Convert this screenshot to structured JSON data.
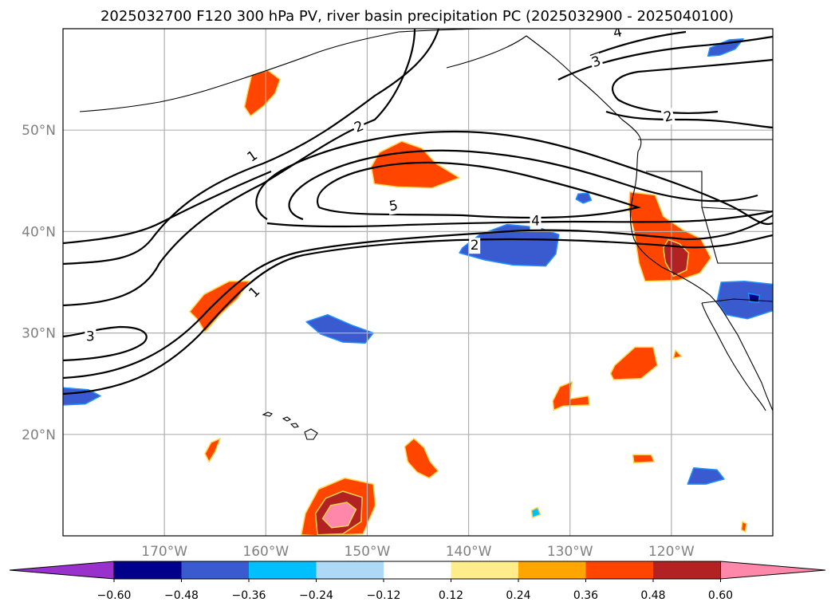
{
  "title": "2025032700 F120 300 hPa PV, river basin precipitation PC (2025032900 - 2025040100)",
  "map": {
    "lon_range": [
      -180,
      -110
    ],
    "lat_range": [
      10,
      60
    ],
    "longitude_ticks": [
      {
        "lon": -170,
        "label": "170°W"
      },
      {
        "lon": -160,
        "label": "160°W"
      },
      {
        "lon": -150,
        "label": "150°W"
      },
      {
        "lon": -140,
        "label": "140°W"
      },
      {
        "lon": -130,
        "label": "130°W"
      },
      {
        "lon": -120,
        "label": "120°W"
      }
    ],
    "latitude_ticks": [
      {
        "lat": 50,
        "label": "50°N"
      },
      {
        "lat": 40,
        "label": "40°N"
      },
      {
        "lat": 30,
        "label": "30°N"
      },
      {
        "lat": 20,
        "label": "20°N"
      }
    ],
    "grid": true,
    "pv_contour_labels": [
      {
        "text": "1",
        "lon": -161.3,
        "lat": 47.4,
        "rot": -35
      },
      {
        "text": "1",
        "lon": -161.1,
        "lat": 34.0,
        "rot": -45
      },
      {
        "text": "2",
        "lon": -150.8,
        "lat": 50.3,
        "rot": -22
      },
      {
        "text": "5",
        "lon": -147.4,
        "lat": 42.5,
        "rot": -10
      },
      {
        "text": "4",
        "lon": -133.4,
        "lat": 41.0,
        "rot": 0
      },
      {
        "text": "2",
        "lon": -139.4,
        "lat": 38.6,
        "rot": 0
      },
      {
        "text": "3",
        "lon": -177.3,
        "lat": 29.6,
        "rot": 0
      },
      {
        "text": "3",
        "lon": -127.4,
        "lat": 56.7,
        "rot": -20
      },
      {
        "text": "4",
        "lon": -125.3,
        "lat": 59.6,
        "rot": -12
      },
      {
        "text": "2",
        "lon": -120.3,
        "lat": 51.3,
        "rot": -15
      }
    ],
    "precipitation_anomalies": [
      {
        "id": "bering-positive",
        "color": "#ff4500",
        "points": [
          [
            -161.4,
            55.4
          ],
          [
            -159.8,
            55.9
          ],
          [
            -158.6,
            55.0
          ],
          [
            -159.1,
            53.6
          ],
          [
            -160.2,
            52.4
          ],
          [
            -161.5,
            51.4
          ],
          [
            -162.1,
            52.3
          ],
          [
            -161.8,
            53.7
          ]
        ]
      },
      {
        "id": "gulf-alaska-positive",
        "color": "#ff4500",
        "points": [
          [
            -148.8,
            47.8
          ],
          [
            -146.6,
            48.9
          ],
          [
            -144.6,
            48.2
          ],
          [
            -143.2,
            46.7
          ],
          [
            -140.9,
            45.3
          ],
          [
            -143.6,
            44.3
          ],
          [
            -147.0,
            44.4
          ],
          [
            -149.3,
            44.7
          ],
          [
            -149.6,
            46.4
          ]
        ]
      },
      {
        "id": "subtropical-west-positive",
        "color": "#ff4500",
        "points": [
          [
            -166.1,
            33.8
          ],
          [
            -163.6,
            35.1
          ],
          [
            -161.6,
            35.1
          ],
          [
            -162.8,
            33.4
          ],
          [
            -164.5,
            31.8
          ],
          [
            -166.0,
            30.1
          ],
          [
            -166.7,
            31.3
          ],
          [
            -167.5,
            32.1
          ]
        ]
      },
      {
        "id": "central-negative",
        "color": "#3a5bcf",
        "points": [
          [
            -140.6,
            38.4
          ],
          [
            -138.9,
            39.7
          ],
          [
            -136.2,
            40.7
          ],
          [
            -133.1,
            40.4
          ],
          [
            -131.1,
            39.7
          ],
          [
            -131.4,
            37.8
          ],
          [
            -132.4,
            36.6
          ],
          [
            -135.6,
            36.7
          ],
          [
            -138.4,
            37.2
          ],
          [
            -140.9,
            37.9
          ]
        ]
      },
      {
        "id": "subtropical-central-negative",
        "color": "#3a5bcf",
        "points": [
          [
            -156.0,
            31.1
          ],
          [
            -153.9,
            31.8
          ],
          [
            -151.6,
            30.8
          ],
          [
            -149.4,
            30.0
          ],
          [
            -150.2,
            29.0
          ],
          [
            -152.4,
            29.1
          ],
          [
            -154.6,
            29.9
          ]
        ]
      },
      {
        "id": "california-positive",
        "color": "#ff4500",
        "points": [
          [
            -124.1,
            43.9
          ],
          [
            -121.6,
            43.6
          ],
          [
            -120.8,
            41.5
          ],
          [
            -118.9,
            40.2
          ],
          [
            -117.1,
            39.3
          ],
          [
            -116.1,
            37.4
          ],
          [
            -117.2,
            35.9
          ],
          [
            -119.3,
            35.2
          ],
          [
            -122.6,
            35.1
          ],
          [
            -123.2,
            36.9
          ],
          [
            -123.7,
            40.1
          ],
          [
            -124.2,
            42.1
          ]
        ]
      },
      {
        "id": "california-core-positive",
        "color": "#b22222",
        "points": [
          [
            -120.3,
            39.2
          ],
          [
            -119.2,
            38.8
          ],
          [
            -118.3,
            37.9
          ],
          [
            -118.5,
            36.2
          ],
          [
            -119.8,
            35.6
          ],
          [
            -120.6,
            37.0
          ],
          [
            -120.8,
            38.4
          ]
        ]
      },
      {
        "id": "baja-negative",
        "color": "#3a5bcf",
        "points": [
          [
            -115.1,
            35.0
          ],
          [
            -112.8,
            35.1
          ],
          [
            -110.0,
            34.8
          ],
          [
            -110.0,
            32.2
          ],
          [
            -112.5,
            31.4
          ],
          [
            -114.6,
            31.8
          ],
          [
            -115.5,
            33.1
          ]
        ]
      },
      {
        "id": "baja-core-negative",
        "color": "#00008b",
        "points": [
          [
            -112.4,
            33.9
          ],
          [
            -111.3,
            33.7
          ],
          [
            -111.4,
            33.0
          ],
          [
            -112.3,
            33.1
          ]
        ]
      },
      {
        "id": "pacific-nw-negative",
        "color": "#3a5bcf",
        "points": [
          [
            -129.2,
            43.7
          ],
          [
            -128.2,
            43.8
          ],
          [
            -127.9,
            43.1
          ],
          [
            -128.7,
            42.8
          ],
          [
            -129.4,
            43.2
          ]
        ]
      },
      {
        "id": "alaska-panhandle-negative",
        "color": "#3a5bcf",
        "points": [
          [
            -116.2,
            58.1
          ],
          [
            -114.3,
            58.9
          ],
          [
            -112.9,
            59.0
          ],
          [
            -113.7,
            58.0
          ],
          [
            -115.2,
            57.4
          ],
          [
            -116.4,
            57.3
          ]
        ]
      },
      {
        "id": "east-subtropic-positive",
        "color": "#ff4500",
        "points": [
          [
            -125.6,
            26.8
          ],
          [
            -123.6,
            28.6
          ],
          [
            -121.8,
            28.6
          ],
          [
            -121.4,
            26.8
          ],
          [
            -123.0,
            25.5
          ],
          [
            -125.7,
            25.4
          ],
          [
            -126.0,
            26.0
          ]
        ]
      },
      {
        "id": "hawaii-ne-positive",
        "color": "#ff4500",
        "points": [
          [
            -131.0,
            24.7
          ],
          [
            -129.8,
            25.2
          ],
          [
            -130.0,
            23.5
          ],
          [
            -128.2,
            23.8
          ],
          [
            -128.1,
            22.9
          ],
          [
            -130.7,
            22.8
          ],
          [
            -131.6,
            22.4
          ],
          [
            -131.7,
            23.3
          ]
        ]
      },
      {
        "id": "baja-south-positive",
        "color": "#ff4500",
        "points": [
          [
            -122.0,
            18.0
          ],
          [
            -121.7,
            17.3
          ],
          [
            -123.7,
            17.2
          ],
          [
            -123.8,
            18.0
          ]
        ]
      },
      {
        "id": "mexico-negative",
        "color": "#3a5bcf",
        "points": [
          [
            -117.8,
            16.7
          ],
          [
            -115.5,
            16.5
          ],
          [
            -114.8,
            15.6
          ],
          [
            -116.6,
            15.1
          ],
          [
            -118.4,
            15.1
          ]
        ]
      },
      {
        "id": "hawaii-south-positive",
        "color": "#ff4500",
        "points": [
          [
            -145.4,
            19.6
          ],
          [
            -144.4,
            18.7
          ],
          [
            -143.8,
            17.3
          ],
          [
            -143.0,
            16.4
          ],
          [
            -143.9,
            15.7
          ],
          [
            -145.1,
            16.3
          ],
          [
            -146.0,
            17.3
          ],
          [
            -146.3,
            18.8
          ]
        ]
      },
      {
        "id": "west-small-positive",
        "color": "#ff4500",
        "points": [
          [
            -165.4,
            19.2
          ],
          [
            -164.5,
            19.6
          ],
          [
            -165.0,
            18.3
          ],
          [
            -165.6,
            17.3
          ],
          [
            -166.0,
            18.1
          ]
        ]
      },
      {
        "id": "south-central-positive",
        "color": "#ff4500",
        "points": [
          [
            -154.8,
            14.6
          ],
          [
            -152.2,
            15.7
          ],
          [
            -149.4,
            15.1
          ],
          [
            -149.2,
            13.0
          ],
          [
            -150.4,
            10.2
          ],
          [
            -154.8,
            10.0
          ],
          [
            -156.5,
            10.1
          ],
          [
            -156.1,
            12.2
          ]
        ]
      },
      {
        "id": "south-central-core",
        "color": "#b22222",
        "points": [
          [
            -154.1,
            13.7
          ],
          [
            -152.4,
            14.4
          ],
          [
            -150.5,
            13.8
          ],
          [
            -150.6,
            11.4
          ],
          [
            -152.4,
            10.2
          ],
          [
            -154.9,
            10.1
          ],
          [
            -155.1,
            12.2
          ]
        ]
      },
      {
        "id": "south-central-peak",
        "color": "#ff88aa",
        "points": [
          [
            -153.6,
            13.0
          ],
          [
            -152.0,
            13.3
          ],
          [
            -151.1,
            12.6
          ],
          [
            -151.9,
            11.0
          ],
          [
            -153.5,
            10.8
          ],
          [
            -154.4,
            11.7
          ]
        ]
      },
      {
        "id": "dateline-negative",
        "color": "#3a5bcf",
        "points": [
          [
            -180.0,
            24.6
          ],
          [
            -177.5,
            24.4
          ],
          [
            -176.3,
            23.8
          ],
          [
            -177.8,
            23.0
          ],
          [
            -180.0,
            22.9
          ]
        ]
      },
      {
        "id": "hawaii-tiny-negative",
        "color": "#00bfff",
        "points": [
          [
            -133.8,
            12.5
          ],
          [
            -133.2,
            12.8
          ],
          [
            -132.9,
            12.1
          ],
          [
            -133.7,
            11.8
          ]
        ]
      },
      {
        "id": "mexico-tiny-positive",
        "color": "#ff4500",
        "points": [
          [
            -113.0,
            11.4
          ],
          [
            -112.6,
            11.2
          ],
          [
            -112.7,
            10.4
          ],
          [
            -113.1,
            10.6
          ]
        ]
      },
      {
        "id": "baja-tiny-positive",
        "color": "#ff4500",
        "points": [
          [
            -119.6,
            28.3
          ],
          [
            -119.0,
            27.7
          ],
          [
            -119.8,
            27.5
          ]
        ]
      }
    ]
  },
  "colorbar": {
    "colors": [
      "#9932cc",
      "#00008b",
      "#3a5bcf",
      "#00bfff",
      "#add8f6",
      "#ffffff",
      "#ffec8b",
      "#ffa500",
      "#ff4500",
      "#b22222",
      "#ff88aa"
    ],
    "tick_labels": [
      "−0.60",
      "−0.48",
      "−0.36",
      "−0.24",
      "−0.12",
      "0.12",
      "0.24",
      "0.36",
      "0.48",
      "0.60"
    ]
  }
}
